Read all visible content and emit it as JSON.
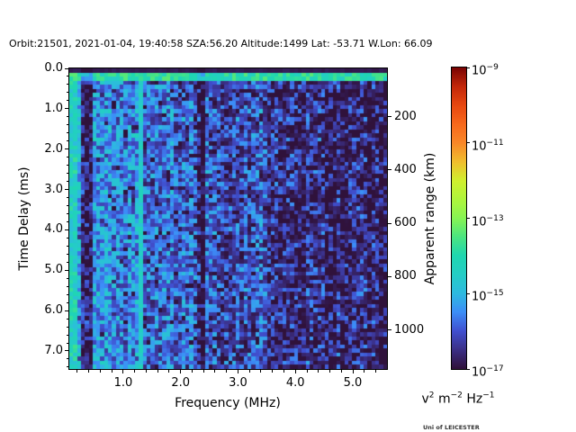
{
  "title": "Orbit:21501, 2021-01-04, 19:40:58 SZA:56.20 Altitude:1499 Lat: -53.71 W.Lon: 66.09",
  "credit": "Uni of LEICESTER",
  "axes": {
    "xlabel": "Frequency (MHz)",
    "ylabel_left": "Time Delay (ms)",
    "ylabel_right": "Apparent range (km)",
    "x_major_ticks": [
      {
        "value": 1.0,
        "label": "1.0"
      },
      {
        "value": 2.0,
        "label": "2.0"
      },
      {
        "value": 3.0,
        "label": "3.0"
      },
      {
        "value": 4.0,
        "label": "4.0"
      },
      {
        "value": 5.0,
        "label": "5.0"
      }
    ],
    "x_minor_step": 0.2,
    "y_major_ticks": [
      {
        "value": 0.0,
        "label": "0.0"
      },
      {
        "value": 1.0,
        "label": "1.0"
      },
      {
        "value": 2.0,
        "label": "2.0"
      },
      {
        "value": 3.0,
        "label": "3.0"
      },
      {
        "value": 4.0,
        "label": "4.0"
      },
      {
        "value": 5.0,
        "label": "5.0"
      },
      {
        "value": 6.0,
        "label": "6.0"
      },
      {
        "value": 7.0,
        "label": "7.0"
      }
    ],
    "y_minor_step": 0.2,
    "right_ticks": [
      {
        "value": 200,
        "label": "200"
      },
      {
        "value": 400,
        "label": "400"
      },
      {
        "value": 600,
        "label": "600"
      },
      {
        "value": 800,
        "label": "800"
      },
      {
        "value": 1000,
        "label": "1000"
      }
    ]
  },
  "colorbar": {
    "mantissa": "10",
    "tick_exponents": [
      "−9",
      "−11",
      "−13",
      "−15",
      "−17"
    ],
    "units_parts": [
      {
        "base": "v",
        "exp": "2"
      },
      {
        "base": "m",
        "exp": "−2"
      },
      {
        "base": "Hz",
        "exp": "−1"
      }
    ]
  },
  "chart_data": {
    "type": "heatmap",
    "title": "Orbit:21501, 2021-01-04, 19:40:58 SZA:56.20 Altitude:1499 Lat: -53.71 W.Lon: 66.09",
    "xlabel": "Frequency (MHz)",
    "ylabel": "Time Delay (ms)",
    "ylabel_right": "Apparent range (km)",
    "xlim_MHz": [
      0.059,
      5.596
    ],
    "ylim_ms": [
      0.0,
      7.446
    ],
    "y_inverted": true,
    "x_ticks": [
      1.0,
      2.0,
      3.0,
      4.0,
      5.0
    ],
    "y_ticks": [
      0.0,
      1.0,
      2.0,
      3.0,
      4.0,
      5.0,
      6.0,
      7.0
    ],
    "right_ticks_km": [
      200,
      400,
      600,
      800,
      1000
    ],
    "range_km_per_ms": 150,
    "color_scale": {
      "scale": "log",
      "vmin": 1e-17,
      "vmax": 1e-09,
      "colormap": "turbo",
      "units": "v^2 m^-2 Hz^-1"
    },
    "grid": {
      "nx": 82,
      "ny": 74
    },
    "noise": {
      "seed": 1337,
      "base_log10": -15.2,
      "slope_log10_per_MHz": -0.25,
      "cell_jitter": 1.8,
      "column_jitter": 0.7,
      "row_jitter": 0.3,
      "extra_dark_prob_base": 0.08,
      "extra_dark_prob_per_MHz": 0.03,
      "extra_dark_amount": -0.9
    },
    "features": [
      {
        "name": "zero-delay-gap",
        "kind": "row",
        "td": [
          0.0,
          0.12
        ],
        "set": [
          -16.85,
          0.15
        ]
      },
      {
        "name": "surface-echo-band",
        "kind": "row",
        "td": [
          0.12,
          0.33
        ],
        "set": [
          -13.95,
          1.2
        ]
      },
      {
        "name": "low-freq-bright-column",
        "kind": "col",
        "f": [
          0.0,
          0.17
        ],
        "set": [
          -14.3,
          1.3
        ]
      },
      {
        "name": "dark-band-1",
        "kind": "col-add",
        "f": [
          0.24,
          0.46
        ],
        "add": [
          -1.4,
          0.5
        ]
      },
      {
        "name": "bright-line-1p3",
        "kind": "col",
        "f": [
          1.27,
          1.33
        ],
        "set": [
          -14.5,
          0.8
        ]
      },
      {
        "name": "dark-band-2",
        "kind": "col-add",
        "f": [
          2.28,
          2.42
        ],
        "add": [
          -0.95,
          0.4
        ]
      }
    ]
  }
}
